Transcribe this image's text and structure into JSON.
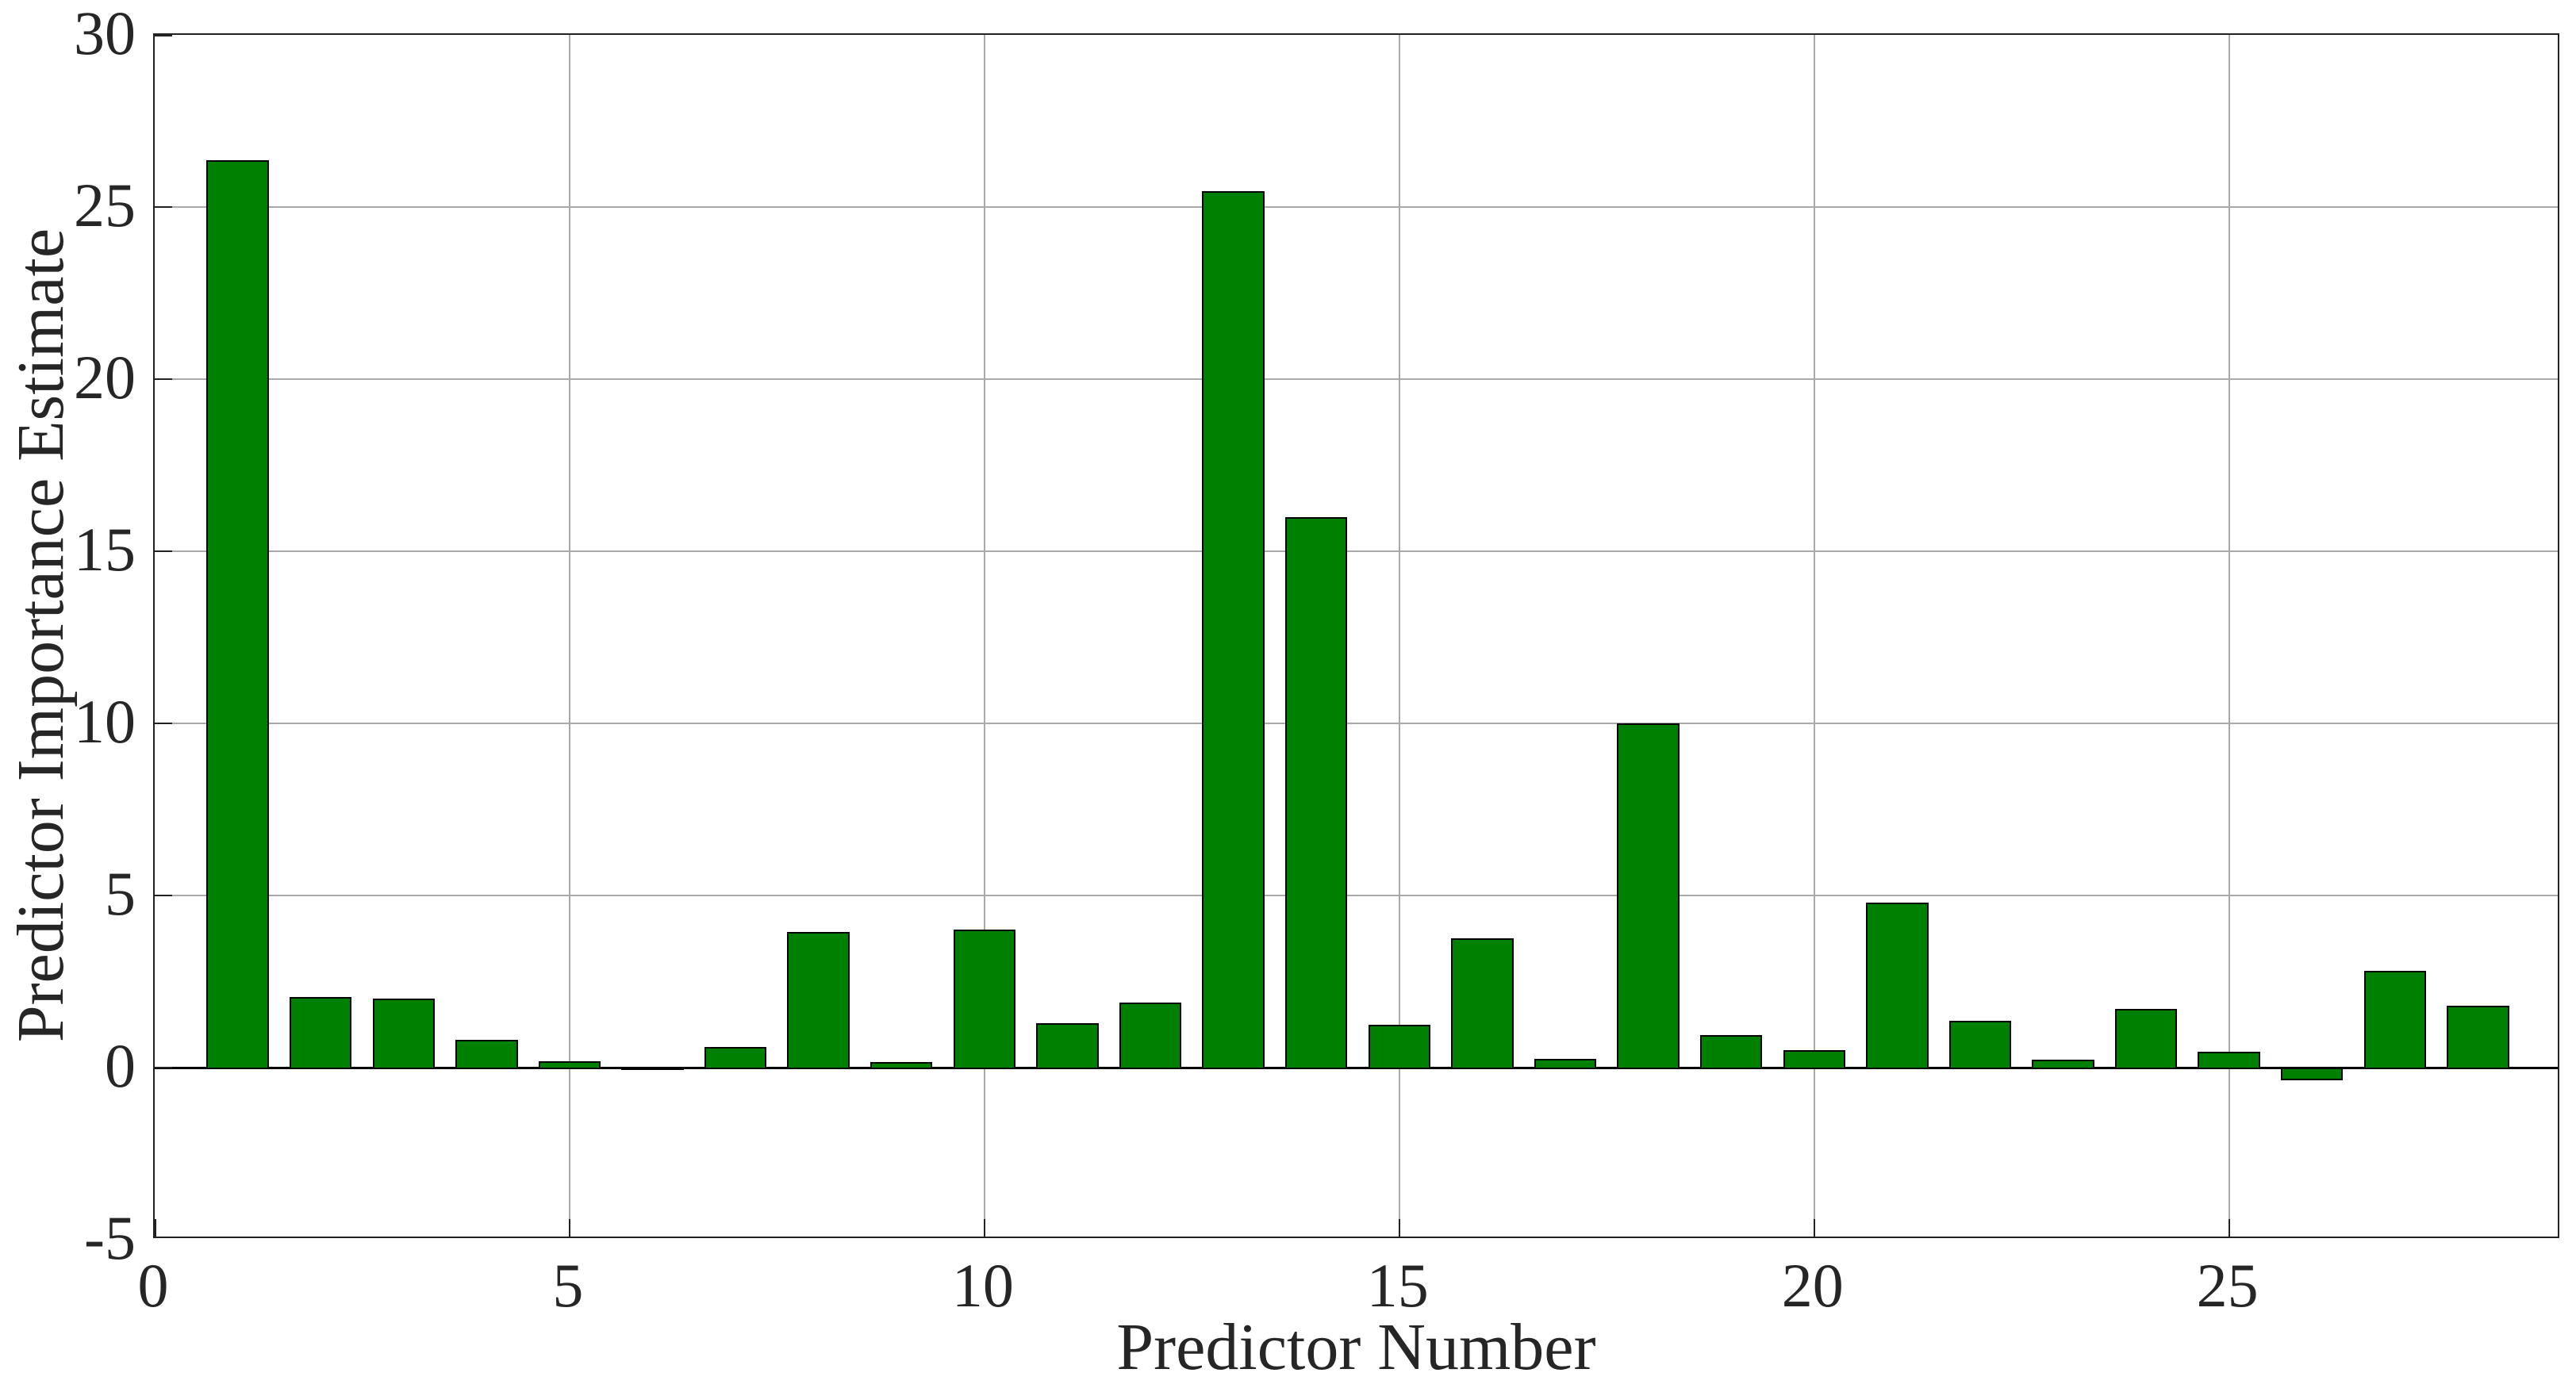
{
  "figure": {
    "background": "#ffffff"
  },
  "chart_data": {
    "type": "bar",
    "title": "",
    "xlabel": "Predictor Number",
    "ylabel": "Predictor Importance Estimate",
    "x": [
      1,
      2,
      3,
      4,
      5,
      6,
      7,
      8,
      9,
      10,
      11,
      12,
      13,
      14,
      15,
      16,
      17,
      18,
      19,
      20,
      21,
      22,
      23,
      24,
      25,
      26,
      27,
      28
    ],
    "values": [
      26.35,
      2.05,
      2.0,
      0.8,
      0.18,
      0.03,
      0.6,
      3.95,
      0.15,
      4.0,
      1.3,
      1.9,
      25.45,
      16.0,
      1.25,
      3.75,
      0.25,
      10.0,
      0.95,
      0.5,
      4.8,
      1.35,
      0.22,
      1.7,
      0.46,
      -0.37,
      2.8,
      1.8
    ],
    "xlim": [
      0,
      29
    ],
    "ylim": [
      -5,
      30
    ],
    "xticks": [
      0,
      5,
      10,
      15,
      20,
      25
    ],
    "yticks": [
      -5,
      0,
      5,
      10,
      15,
      20,
      25,
      30
    ],
    "grid": true,
    "legend_position": "none",
    "bar_color": "#008000",
    "bar_edge_color": "#000000",
    "bar_width_ratio": 0.75,
    "grid_color": "#a9a9a9",
    "axis_color": "#222222",
    "baseline_color": "#000000",
    "text_color": "#262626"
  }
}
